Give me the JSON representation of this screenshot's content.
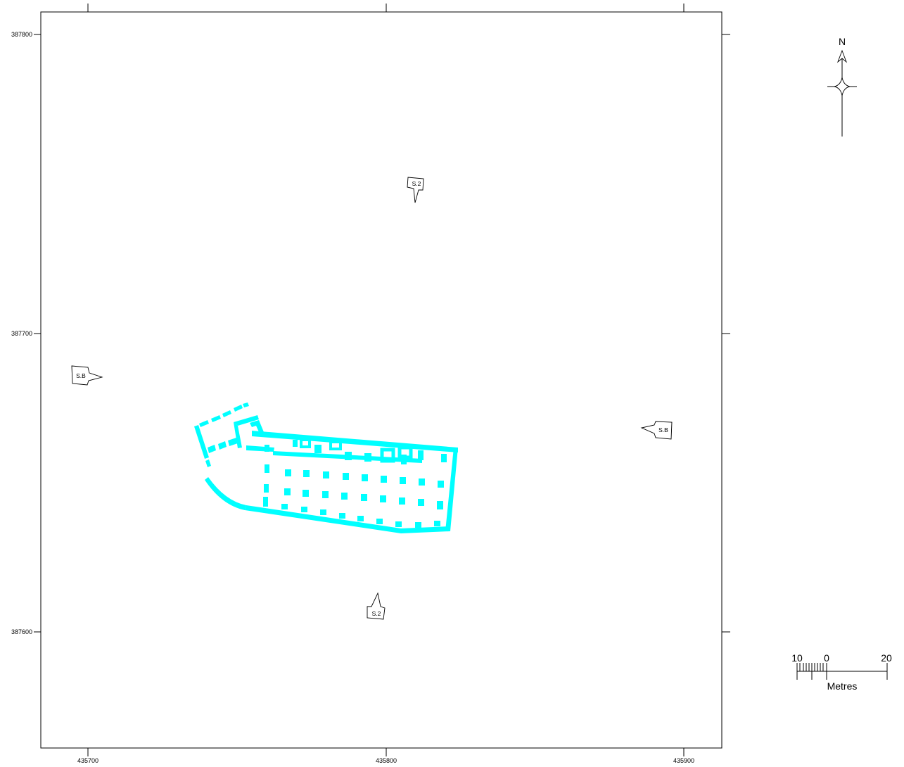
{
  "map": {
    "axes": {
      "x_ticks": [
        "435700",
        "435800",
        "435900"
      ],
      "y_ticks": [
        "387800",
        "387700",
        "387600"
      ]
    },
    "north_arrow": {
      "label": "N"
    },
    "scale_bar": {
      "labels": [
        "10",
        "0",
        "20"
      ],
      "unit": "Metres"
    },
    "section_markers": [
      {
        "id": "s2-north",
        "label": "S.2",
        "points": "down"
      },
      {
        "id": "s2-south",
        "label": "S.2",
        "points": "up"
      },
      {
        "id": "sb-west",
        "label": "S.B",
        "points": "right"
      },
      {
        "id": "sb-east",
        "label": "S.B",
        "points": "left"
      }
    ],
    "feature_color": "#00ffff",
    "line_color": "#000000"
  }
}
